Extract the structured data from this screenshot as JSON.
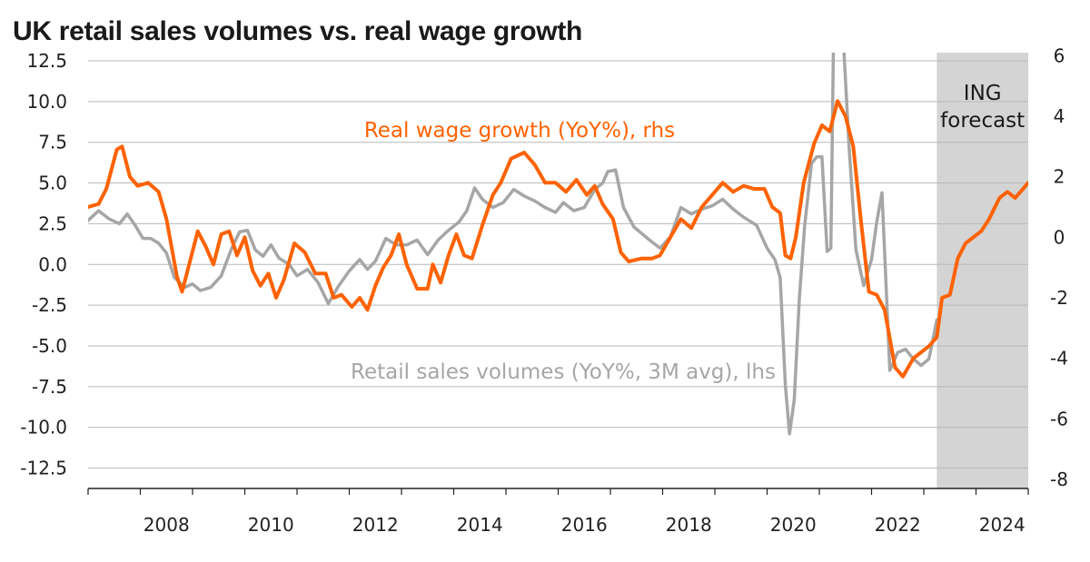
{
  "chart_data": {
    "type": "line",
    "title": "UK retail sales volumes vs. real wage growth",
    "x_axis": {
      "ticks": [
        "2008",
        "2010",
        "2012",
        "2014",
        "2016",
        "2018",
        "2020",
        "2022",
        "2024"
      ],
      "range": [
        2007.0,
        2025.0
      ]
    },
    "y_left": {
      "ticks": [
        "12.5",
        "10.0",
        "7.5",
        "5.0",
        "2.5",
        "0.0",
        "-2.5",
        "-5.0",
        "-7.5",
        "-10.0",
        "-12.5"
      ],
      "range": [
        -13.75,
        13.0
      ]
    },
    "y_right": {
      "ticks": [
        "6",
        "4",
        "2",
        "0",
        "-2",
        "-4",
        "-6",
        "-8"
      ],
      "range": [
        -8.3,
        6.1
      ]
    },
    "grid": "horizontal",
    "shaded_region": {
      "label": [
        "ING",
        "forecast"
      ],
      "x_start": 2023.25,
      "x_end": 2025.0
    },
    "series": [
      {
        "name": "Real wage growth (YoY%), rhs",
        "axis": "right",
        "color": "#ff6200",
        "points": [
          [
            2007.0,
            1.0
          ],
          [
            2007.2,
            1.1
          ],
          [
            2007.35,
            1.6
          ],
          [
            2007.55,
            2.9
          ],
          [
            2007.65,
            3.0
          ],
          [
            2007.8,
            2.0
          ],
          [
            2007.95,
            1.7
          ],
          [
            2008.15,
            1.8
          ],
          [
            2008.35,
            1.5
          ],
          [
            2008.5,
            0.6
          ],
          [
            2008.7,
            -1.3
          ],
          [
            2008.8,
            -1.8
          ],
          [
            2008.95,
            -0.8
          ],
          [
            2009.1,
            0.2
          ],
          [
            2009.25,
            -0.3
          ],
          [
            2009.4,
            -0.9
          ],
          [
            2009.55,
            0.1
          ],
          [
            2009.7,
            0.2
          ],
          [
            2009.85,
            -0.6
          ],
          [
            2010.0,
            0.0
          ],
          [
            2010.15,
            -1.1
          ],
          [
            2010.3,
            -1.6
          ],
          [
            2010.45,
            -1.2
          ],
          [
            2010.6,
            -2.0
          ],
          [
            2010.75,
            -1.4
          ],
          [
            2010.95,
            -0.2
          ],
          [
            2011.15,
            -0.5
          ],
          [
            2011.35,
            -1.2
          ],
          [
            2011.55,
            -1.2
          ],
          [
            2011.7,
            -2.0
          ],
          [
            2011.85,
            -1.9
          ],
          [
            2012.05,
            -2.3
          ],
          [
            2012.2,
            -2.0
          ],
          [
            2012.35,
            -2.4
          ],
          [
            2012.5,
            -1.6
          ],
          [
            2012.65,
            -1.0
          ],
          [
            2012.8,
            -0.6
          ],
          [
            2012.95,
            0.1
          ],
          [
            2013.1,
            -0.9
          ],
          [
            2013.3,
            -1.7
          ],
          [
            2013.5,
            -1.7
          ],
          [
            2013.6,
            -0.9
          ],
          [
            2013.75,
            -1.5
          ],
          [
            2013.9,
            -0.6
          ],
          [
            2014.05,
            0.1
          ],
          [
            2014.2,
            -0.6
          ],
          [
            2014.35,
            -0.7
          ],
          [
            2014.55,
            0.4
          ],
          [
            2014.75,
            1.4
          ],
          [
            2014.9,
            1.8
          ],
          [
            2015.1,
            2.6
          ],
          [
            2015.35,
            2.8
          ],
          [
            2015.55,
            2.4
          ],
          [
            2015.75,
            1.8
          ],
          [
            2015.95,
            1.8
          ],
          [
            2016.15,
            1.5
          ],
          [
            2016.35,
            1.9
          ],
          [
            2016.55,
            1.4
          ],
          [
            2016.7,
            1.7
          ],
          [
            2016.85,
            1.1
          ],
          [
            2017.05,
            0.6
          ],
          [
            2017.2,
            -0.5
          ],
          [
            2017.35,
            -0.8
          ],
          [
            2017.6,
            -0.7
          ],
          [
            2017.8,
            -0.7
          ],
          [
            2017.95,
            -0.6
          ],
          [
            2018.15,
            0.0
          ],
          [
            2018.35,
            0.6
          ],
          [
            2018.55,
            0.3
          ],
          [
            2018.75,
            1.0
          ],
          [
            2018.95,
            1.4
          ],
          [
            2019.15,
            1.8
          ],
          [
            2019.35,
            1.5
          ],
          [
            2019.55,
            1.7
          ],
          [
            2019.75,
            1.6
          ],
          [
            2019.95,
            1.6
          ],
          [
            2020.1,
            1.0
          ],
          [
            2020.25,
            0.8
          ],
          [
            2020.35,
            -0.6
          ],
          [
            2020.45,
            -0.7
          ],
          [
            2020.55,
            0.0
          ],
          [
            2020.7,
            1.8
          ],
          [
            2020.9,
            3.1
          ],
          [
            2021.05,
            3.7
          ],
          [
            2021.2,
            3.5
          ],
          [
            2021.35,
            4.5
          ],
          [
            2021.5,
            4.0
          ],
          [
            2021.65,
            3.0
          ],
          [
            2021.8,
            0.5
          ],
          [
            2021.95,
            -1.8
          ],
          [
            2022.1,
            -1.9
          ],
          [
            2022.25,
            -2.4
          ],
          [
            2022.45,
            -4.3
          ],
          [
            2022.6,
            -4.6
          ],
          [
            2022.8,
            -4.0
          ],
          [
            2022.95,
            -3.8
          ],
          [
            2023.1,
            -3.6
          ],
          [
            2023.25,
            -3.3
          ],
          [
            2023.35,
            -2.0
          ],
          [
            2023.5,
            -1.9
          ],
          [
            2023.65,
            -0.7
          ],
          [
            2023.8,
            -0.2
          ],
          [
            2023.95,
            0.0
          ],
          [
            2024.1,
            0.2
          ],
          [
            2024.25,
            0.6
          ],
          [
            2024.45,
            1.3
          ],
          [
            2024.6,
            1.5
          ],
          [
            2024.75,
            1.3
          ],
          [
            2024.9,
            1.6
          ],
          [
            2025.0,
            1.8
          ]
        ]
      },
      {
        "name": "Retail sales volumes (YoY%, 3M avg), lhs",
        "axis": "left",
        "color": "#a6a6a6",
        "points": [
          [
            2007.0,
            2.7
          ],
          [
            2007.2,
            3.3
          ],
          [
            2007.4,
            2.8
          ],
          [
            2007.6,
            2.5
          ],
          [
            2007.75,
            3.1
          ],
          [
            2007.9,
            2.4
          ],
          [
            2008.05,
            1.6
          ],
          [
            2008.2,
            1.6
          ],
          [
            2008.35,
            1.3
          ],
          [
            2008.5,
            0.7
          ],
          [
            2008.65,
            -0.8
          ],
          [
            2008.85,
            -1.4
          ],
          [
            2009.0,
            -1.2
          ],
          [
            2009.15,
            -1.6
          ],
          [
            2009.35,
            -1.4
          ],
          [
            2009.55,
            -0.7
          ],
          [
            2009.75,
            1.0
          ],
          [
            2009.9,
            2.0
          ],
          [
            2010.05,
            2.1
          ],
          [
            2010.2,
            0.9
          ],
          [
            2010.35,
            0.5
          ],
          [
            2010.5,
            1.2
          ],
          [
            2010.65,
            0.4
          ],
          [
            2010.85,
            0.0
          ],
          [
            2011.0,
            -0.7
          ],
          [
            2011.2,
            -0.3
          ],
          [
            2011.4,
            -1.1
          ],
          [
            2011.6,
            -2.4
          ],
          [
            2011.8,
            -1.3
          ],
          [
            2012.0,
            -0.4
          ],
          [
            2012.2,
            0.3
          ],
          [
            2012.35,
            -0.3
          ],
          [
            2012.5,
            0.2
          ],
          [
            2012.7,
            1.6
          ],
          [
            2012.9,
            1.2
          ],
          [
            2013.1,
            1.2
          ],
          [
            2013.3,
            1.5
          ],
          [
            2013.5,
            0.6
          ],
          [
            2013.7,
            1.5
          ],
          [
            2013.9,
            2.1
          ],
          [
            2014.1,
            2.6
          ],
          [
            2014.25,
            3.3
          ],
          [
            2014.4,
            4.7
          ],
          [
            2014.55,
            4.0
          ],
          [
            2014.75,
            3.5
          ],
          [
            2014.95,
            3.8
          ],
          [
            2015.15,
            4.6
          ],
          [
            2015.35,
            4.2
          ],
          [
            2015.55,
            3.9
          ],
          [
            2015.75,
            3.5
          ],
          [
            2015.95,
            3.2
          ],
          [
            2016.1,
            3.8
          ],
          [
            2016.3,
            3.3
          ],
          [
            2016.5,
            3.5
          ],
          [
            2016.7,
            4.6
          ],
          [
            2016.85,
            5.0
          ],
          [
            2016.95,
            5.7
          ],
          [
            2017.1,
            5.8
          ],
          [
            2017.25,
            3.5
          ],
          [
            2017.45,
            2.3
          ],
          [
            2017.6,
            1.9
          ],
          [
            2017.75,
            1.5
          ],
          [
            2017.95,
            1.0
          ],
          [
            2018.15,
            1.7
          ],
          [
            2018.35,
            3.5
          ],
          [
            2018.55,
            3.1
          ],
          [
            2018.75,
            3.4
          ],
          [
            2018.95,
            3.6
          ],
          [
            2019.15,
            4.0
          ],
          [
            2019.35,
            3.4
          ],
          [
            2019.55,
            2.9
          ],
          [
            2019.8,
            2.4
          ],
          [
            2020.0,
            1.0
          ],
          [
            2020.15,
            0.3
          ],
          [
            2020.25,
            -0.8
          ],
          [
            2020.35,
            -7.4
          ],
          [
            2020.43,
            -10.4
          ],
          [
            2020.52,
            -8.3
          ],
          [
            2020.62,
            -2.0
          ],
          [
            2020.72,
            2.4
          ],
          [
            2020.85,
            6.2
          ],
          [
            2020.95,
            6.6
          ],
          [
            2021.05,
            6.6
          ],
          [
            2021.15,
            0.8
          ],
          [
            2021.22,
            1.0
          ],
          [
            2021.27,
            13.2
          ],
          [
            2021.47,
            13.2
          ],
          [
            2021.57,
            7.2
          ],
          [
            2021.7,
            0.9
          ],
          [
            2021.85,
            -1.3
          ],
          [
            2022.0,
            0.3
          ],
          [
            2022.1,
            2.6
          ],
          [
            2022.2,
            4.4
          ],
          [
            2022.35,
            -6.5
          ],
          [
            2022.5,
            -5.4
          ],
          [
            2022.65,
            -5.2
          ],
          [
            2022.8,
            -5.8
          ],
          [
            2022.95,
            -6.2
          ],
          [
            2023.1,
            -5.8
          ],
          [
            2023.25,
            -3.4
          ]
        ]
      }
    ],
    "annotations": [
      {
        "text": "Real wage growth (YoY%), rhs",
        "series": 0
      },
      {
        "text": "Retail sales volumes (YoY%, 3M avg), lhs",
        "series": 1
      }
    ]
  }
}
